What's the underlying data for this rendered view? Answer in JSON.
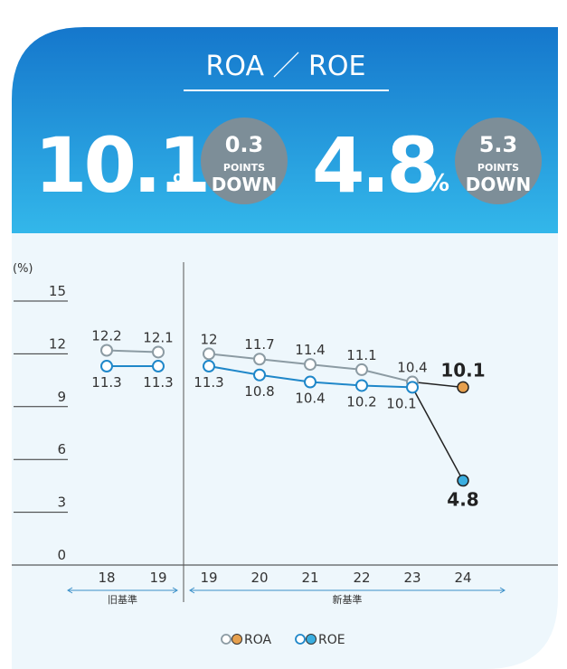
{
  "header": {
    "title": "ROA ／ ROE",
    "items": [
      {
        "value": "10.1",
        "unit": "%",
        "change": "0.3",
        "change_unit": "POINTS",
        "direction": "DOWN"
      },
      {
        "value": "4.8",
        "unit": "%",
        "change": "5.3",
        "change_unit": "POINTS",
        "direction": "DOWN"
      }
    ]
  },
  "chart_data": {
    "type": "line",
    "y_label": "(%)",
    "groups": [
      {
        "name": "旧基準",
        "categories": [
          "18",
          "19"
        ]
      },
      {
        "name": "新基準",
        "categories": [
          "19",
          "20",
          "21",
          "22",
          "23",
          "24"
        ]
      }
    ],
    "series": [
      {
        "name": "ROA",
        "color": "#8c9ba3",
        "highlight_color": "#e6a04e",
        "values": [
          12.2,
          12.1,
          12.0,
          11.7,
          11.4,
          11.1,
          10.4,
          10.1
        ]
      },
      {
        "name": "ROE",
        "color": "#1f87c9",
        "highlight_color": "#3aaee0",
        "values": [
          11.3,
          11.3,
          11.3,
          10.8,
          10.4,
          10.2,
          10.1,
          4.8
        ]
      }
    ],
    "ylim": [
      0,
      15
    ],
    "yticks": [
      0,
      3,
      6,
      9,
      12,
      15
    ]
  }
}
